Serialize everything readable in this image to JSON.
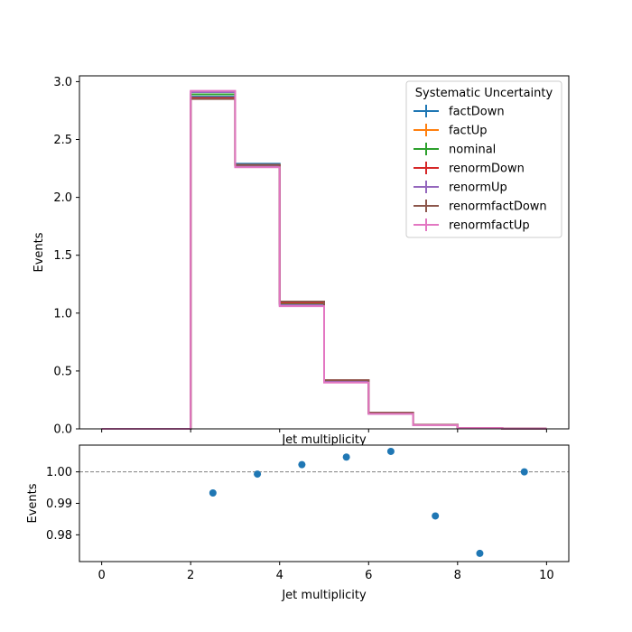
{
  "chart_data": [
    {
      "type": "line",
      "subtype": "step-histogram",
      "xlabel": "Jet multiplicity",
      "ylabel": "Events",
      "xlim": [
        -0.5,
        10.5
      ],
      "ylim": [
        0,
        3.05
      ],
      "xticks": [
        0,
        2,
        4,
        6,
        8,
        10
      ],
      "yticks": [
        0.0,
        0.5,
        1.0,
        1.5,
        2.0,
        2.5,
        3.0
      ],
      "ytick_labels": [
        "0.0",
        "0.5",
        "1.0",
        "1.5",
        "2.0",
        "2.5",
        "3.0"
      ],
      "bin_edges": [
        0,
        1,
        2,
        3,
        4,
        5,
        6,
        7,
        8,
        9,
        10
      ],
      "legend_title": "Systematic Uncertainty",
      "legend_position": "top-right",
      "series": [
        {
          "name": "factDown",
          "color": "#1f77b4",
          "values": [
            0,
            0,
            2.87,
            2.29,
            1.09,
            0.42,
            0.14,
            0.035,
            0.008,
            0.002
          ]
        },
        {
          "name": "factUp",
          "color": "#ff7f0e",
          "values": [
            0,
            0,
            2.89,
            2.28,
            1.08,
            0.41,
            0.135,
            0.034,
            0.008,
            0.002
          ]
        },
        {
          "name": "nominal",
          "color": "#2ca02c",
          "values": [
            0,
            0,
            2.89,
            2.28,
            1.08,
            0.41,
            0.135,
            0.034,
            0.008,
            0.002
          ]
        },
        {
          "name": "renormDown",
          "color": "#d62728",
          "values": [
            0,
            0,
            2.86,
            2.28,
            1.09,
            0.42,
            0.14,
            0.035,
            0.008,
            0.002
          ]
        },
        {
          "name": "renormUp",
          "color": "#9467bd",
          "values": [
            0,
            0,
            2.91,
            2.27,
            1.07,
            0.41,
            0.13,
            0.033,
            0.008,
            0.002
          ]
        },
        {
          "name": "renormfactDown",
          "color": "#8c564b",
          "values": [
            0,
            0,
            2.85,
            2.28,
            1.1,
            0.42,
            0.14,
            0.036,
            0.008,
            0.002
          ]
        },
        {
          "name": "renormfactUp",
          "color": "#e377c2",
          "values": [
            0,
            0,
            2.92,
            2.26,
            1.06,
            0.4,
            0.13,
            0.032,
            0.007,
            0.002
          ]
        }
      ]
    },
    {
      "type": "scatter",
      "xlabel": "Jet multiplicity",
      "ylabel": "Events",
      "xlim": [
        -0.5,
        10.5
      ],
      "ylim": [
        0.9715,
        1.0085
      ],
      "xticks": [
        0,
        2,
        4,
        6,
        8,
        10
      ],
      "yticks": [
        0.98,
        0.99,
        1.0
      ],
      "ytick_labels": [
        "0.98",
        "0.99",
        "1.00"
      ],
      "reference_line": 1.0,
      "color": "#1f77b4",
      "x": [
        2.5,
        3.5,
        4.5,
        5.5,
        6.5,
        7.5,
        8.5,
        9.5
      ],
      "y": [
        0.9933,
        0.9993,
        1.0023,
        1.0047,
        1.0065,
        0.986,
        0.9741,
        1.0
      ]
    }
  ]
}
